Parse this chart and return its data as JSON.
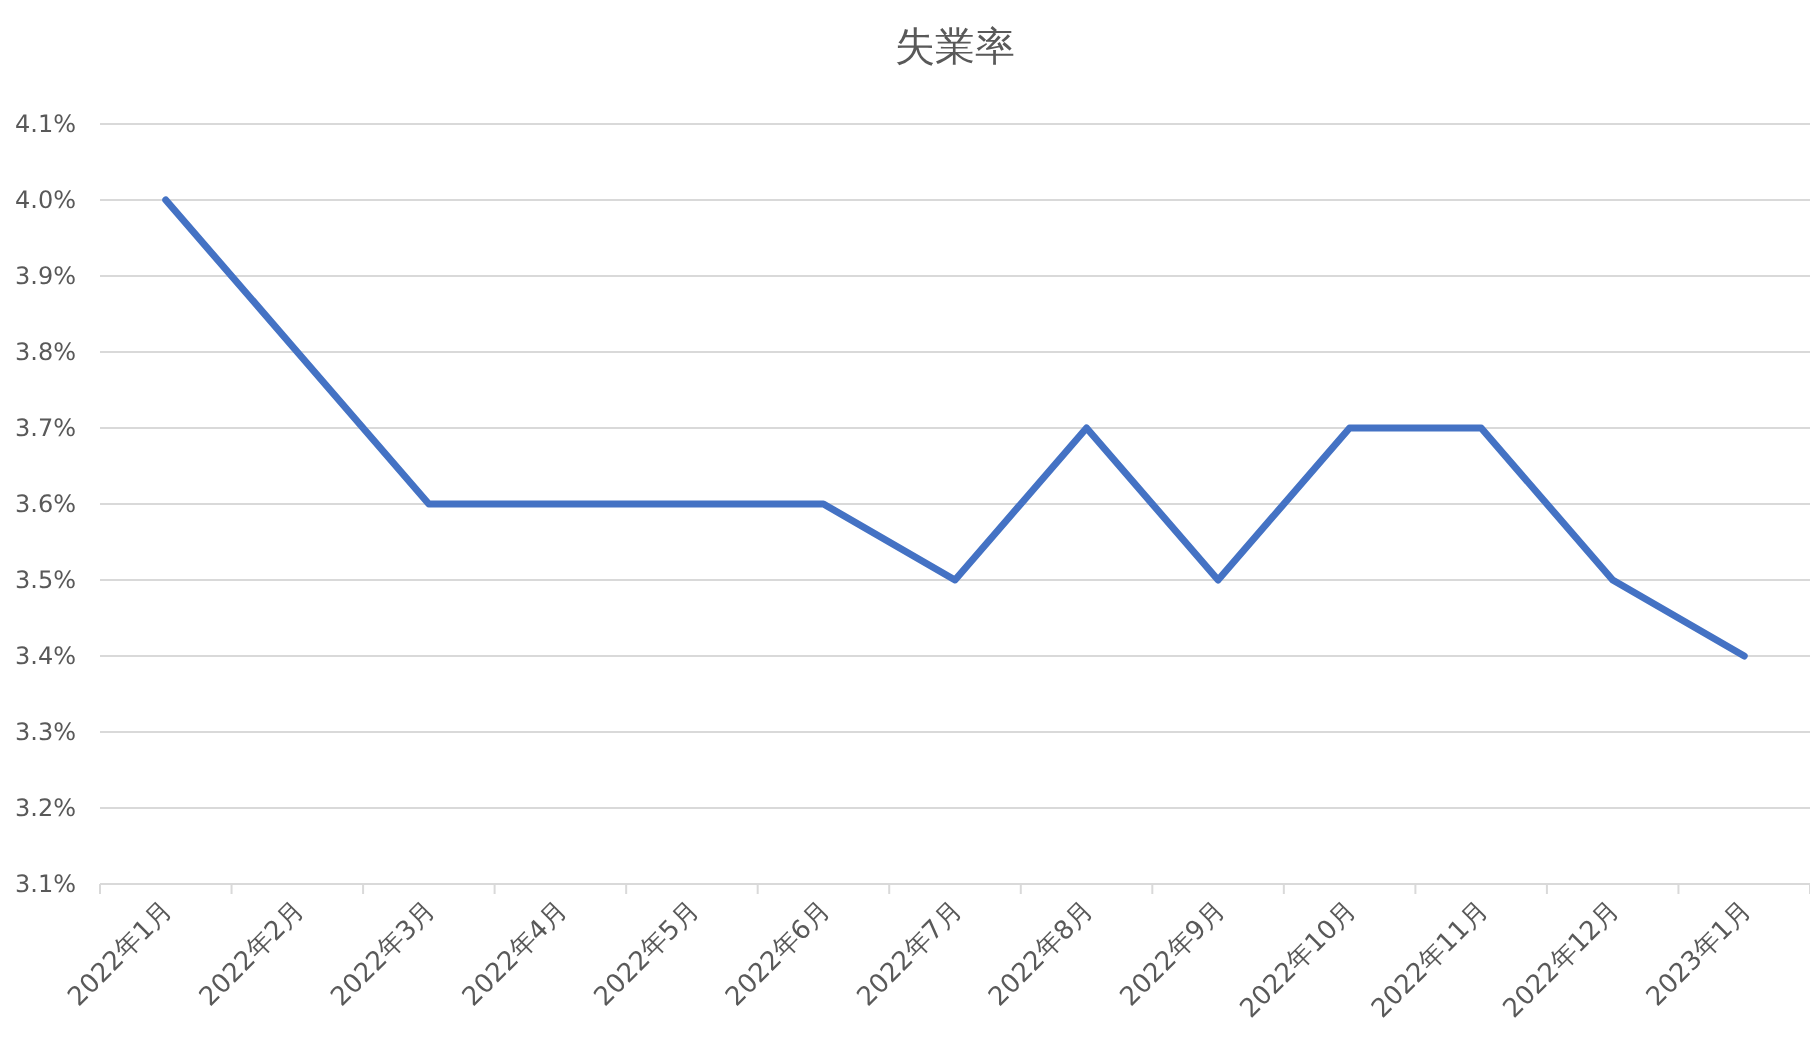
{
  "chart_data": {
    "type": "line",
    "title": "失業率",
    "categories": [
      "2022年1月",
      "2022年2月",
      "2022年3月",
      "2022年4月",
      "2022年5月",
      "2022年6月",
      "2022年7月",
      "2022年8月",
      "2022年9月",
      "2022年10月",
      "2022年11月",
      "2022年12月",
      "2023年1月"
    ],
    "series": [
      {
        "color": "#4472c4",
        "values": [
          4.0,
          3.8,
          3.6,
          3.6,
          3.6,
          3.6,
          3.5,
          3.7,
          3.5,
          3.7,
          3.7,
          3.5,
          3.4
        ]
      }
    ],
    "ylim": [
      3.1,
      4.1
    ],
    "yticks": [
      {
        "value": 3.1,
        "label": "3.1%"
      },
      {
        "value": 3.2,
        "label": "3.2%"
      },
      {
        "value": 3.3,
        "label": "3.3%"
      },
      {
        "value": 3.4,
        "label": "3.4%"
      },
      {
        "value": 3.5,
        "label": "3.5%"
      },
      {
        "value": 3.6,
        "label": "3.6%"
      },
      {
        "value": 3.7,
        "label": "3.7%"
      },
      {
        "value": 3.8,
        "label": "3.8%"
      },
      {
        "value": 3.9,
        "label": "3.9%"
      },
      {
        "value": 4.0,
        "label": "4.0%"
      },
      {
        "value": 4.1,
        "label": "4.1%"
      }
    ],
    "grid": "y",
    "marker": "none",
    "line_style": "solid"
  }
}
